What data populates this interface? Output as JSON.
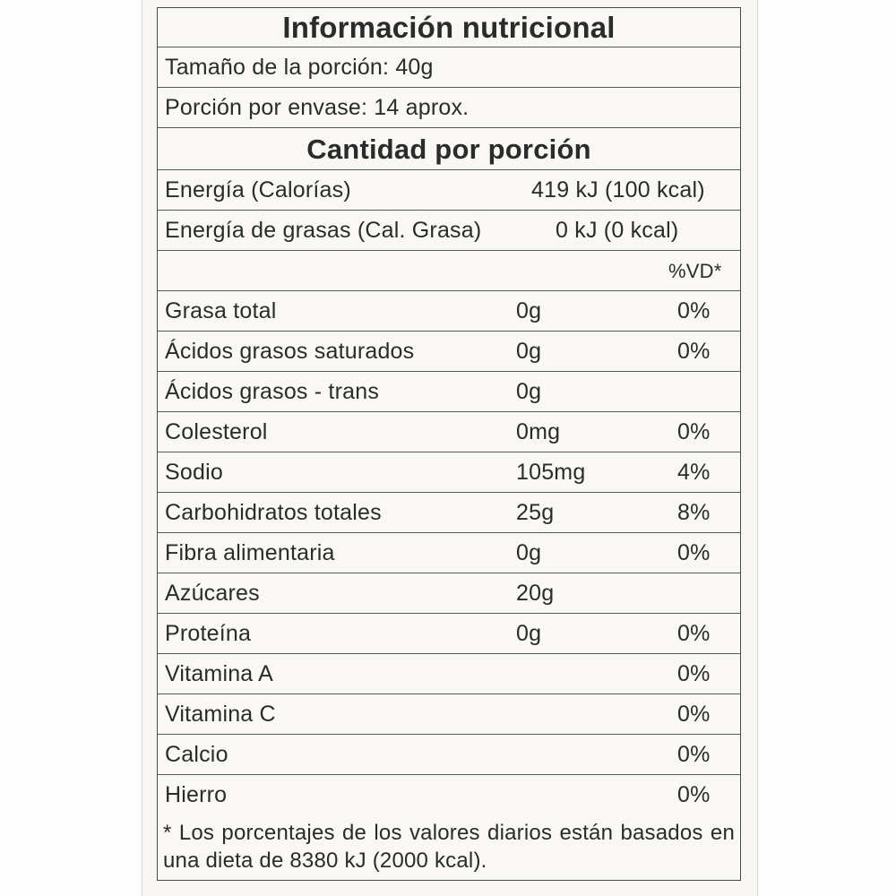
{
  "title": "Información nutricional",
  "serving_size": "Tamaño de la porción: 40g",
  "servings_per_container": "Porción por envase: 14 aprox.",
  "section_heading": "Cantidad por porción",
  "energy": {
    "label": "Energía (Calorías)",
    "value": "419 kJ (100 kcal)"
  },
  "fat_energy": {
    "label": "Energía de grasas (Cal. Grasa)",
    "value": "0 kJ (0 kcal)"
  },
  "dv_header": "%VD*",
  "nutrients": [
    {
      "name": "Grasa total",
      "amount": "0g",
      "dv": "0%"
    },
    {
      "name": "Ácidos grasos saturados",
      "amount": "0g",
      "dv": "0%"
    },
    {
      "name": "Ácidos grasos - trans",
      "amount": "0g",
      "dv": ""
    },
    {
      "name": "Colesterol",
      "amount": "0mg",
      "dv": "0%"
    },
    {
      "name": "Sodio",
      "amount": "105mg",
      "dv": "4%"
    },
    {
      "name": "Carbohidratos totales",
      "amount": "25g",
      "dv": "8%"
    },
    {
      "name": "Fibra alimentaria",
      "amount": "0g",
      "dv": "0%"
    },
    {
      "name": "Azúcares",
      "amount": "20g",
      "dv": ""
    },
    {
      "name": "Proteína",
      "amount": "0g",
      "dv": "0%"
    },
    {
      "name": "Vitamina A",
      "amount": "",
      "dv": "0%"
    },
    {
      "name": "Vitamina C",
      "amount": "",
      "dv": "0%"
    },
    {
      "name": "Calcio",
      "amount": "",
      "dv": "0%"
    },
    {
      "name": "Hierro",
      "amount": "",
      "dv": "0%"
    }
  ],
  "footnote": "* Los porcentajes de los valores diarios están basados en una dieta de 8380 kJ (2000 kcal)."
}
